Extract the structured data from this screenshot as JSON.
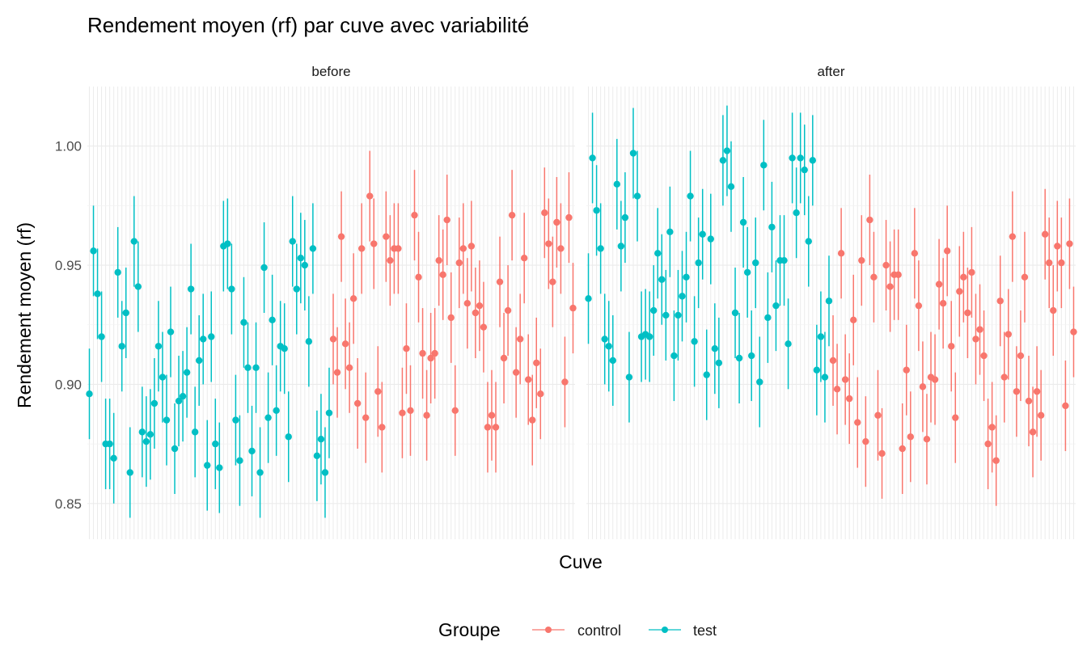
{
  "chart_data": {
    "type": "scatter",
    "title": "Rendement moyen (rf) par cuve avec variabilité",
    "xlabel": "Cuve",
    "ylabel": "Rendement moyen (rf)",
    "ylim": [
      0.835,
      1.025
    ],
    "yticks": [
      0.85,
      0.9,
      0.95,
      1.0
    ],
    "ytick_labels": [
      "0.85",
      "0.90",
      "0.95",
      "1.00"
    ],
    "x_tick_labels_shown": false,
    "grid": true,
    "facets": [
      "before",
      "after"
    ],
    "legend": {
      "title": "Groupe",
      "position": "bottom",
      "entries": [
        {
          "name": "control",
          "color": "#F8766D"
        },
        {
          "name": "test",
          "color": "#00BFC4"
        }
      ]
    },
    "series": [
      {
        "name": "test",
        "color": "#00BFC4",
        "facet_values": {
          "before": [
            0.896,
            0.956,
            0.938,
            0.92,
            0.875,
            0.875,
            0.869,
            0.947,
            0.916,
            0.93,
            0.863,
            0.96,
            0.941,
            0.88,
            0.876,
            0.879,
            0.892,
            0.916,
            0.903,
            0.885,
            0.922,
            0.873,
            0.893,
            0.895,
            0.905,
            0.94,
            0.88,
            0.91,
            0.919,
            0.866,
            0.92,
            0.875,
            0.865,
            0.958,
            0.959,
            0.94,
            0.885,
            0.868,
            0.926,
            0.907,
            0.872,
            0.907,
            0.863,
            0.949,
            0.886,
            0.927,
            0.889,
            0.916,
            0.915,
            0.878,
            0.96,
            0.94,
            0.953,
            0.95,
            0.918,
            0.957,
            0.87,
            0.877,
            0.863,
            0.888
          ],
          "after": [
            0.936,
            0.995,
            0.973,
            0.957,
            0.919,
            0.916,
            0.91,
            0.984,
            0.958,
            0.97,
            0.903,
            0.997,
            0.979,
            0.92,
            0.921,
            0.92,
            0.931,
            0.955,
            0.944,
            0.929,
            0.964,
            0.912,
            0.929,
            0.937,
            0.945,
            0.979,
            0.918,
            0.951,
            0.963,
            0.904,
            0.961,
            0.915,
            0.909,
            0.994,
            0.998,
            0.983,
            0.93,
            0.911,
            0.968,
            0.947,
            0.912,
            0.951,
            0.901,
            0.992,
            0.928,
            0.966,
            0.933,
            0.952,
            0.952,
            0.917,
            0.995,
            0.972,
            0.995,
            0.99,
            0.96,
            0.994,
            0.906,
            0.92,
            0.903,
            0.935
          ]
        },
        "error_halfwidth": 0.019
      },
      {
        "name": "control",
        "color": "#F8766D",
        "facet_values": {
          "before": [
            0.919,
            0.905,
            0.962,
            0.917,
            0.907,
            0.936,
            0.892,
            0.957,
            0.886,
            0.979,
            0.959,
            0.897,
            0.882,
            0.962,
            0.952,
            0.957,
            0.957,
            0.888,
            0.915,
            0.889,
            0.971,
            0.945,
            0.913,
            0.887,
            0.911,
            0.913,
            0.952,
            0.946,
            0.969,
            0.928,
            0.889,
            0.951,
            0.957,
            0.934,
            0.958,
            0.93,
            0.933,
            0.924,
            0.882,
            0.887,
            0.882,
            0.943,
            0.911,
            0.931,
            0.971,
            0.905,
            0.919,
            0.953,
            0.902,
            0.885,
            0.909,
            0.896,
            0.972,
            0.959,
            0.943,
            0.968,
            0.957,
            0.901,
            0.97,
            0.932
          ],
          "after": [
            0.91,
            0.898,
            0.955,
            0.902,
            0.894,
            0.927,
            0.884,
            0.952,
            0.876,
            0.969,
            0.945,
            0.887,
            0.871,
            0.95,
            0.941,
            0.946,
            0.946,
            0.873,
            0.906,
            0.878,
            0.955,
            0.933,
            0.899,
            0.877,
            0.903,
            0.902,
            0.942,
            0.934,
            0.956,
            0.916,
            0.886,
            0.939,
            0.945,
            0.93,
            0.947,
            0.919,
            0.923,
            0.912,
            0.875,
            0.882,
            0.868,
            0.935,
            0.903,
            0.921,
            0.962,
            0.897,
            0.912,
            0.945,
            0.893,
            0.88,
            0.897,
            0.887,
            0.963,
            0.951,
            0.931,
            0.958,
            0.951,
            0.891,
            0.959,
            0.922
          ]
        },
        "error_halfwidth": 0.019
      }
    ]
  }
}
